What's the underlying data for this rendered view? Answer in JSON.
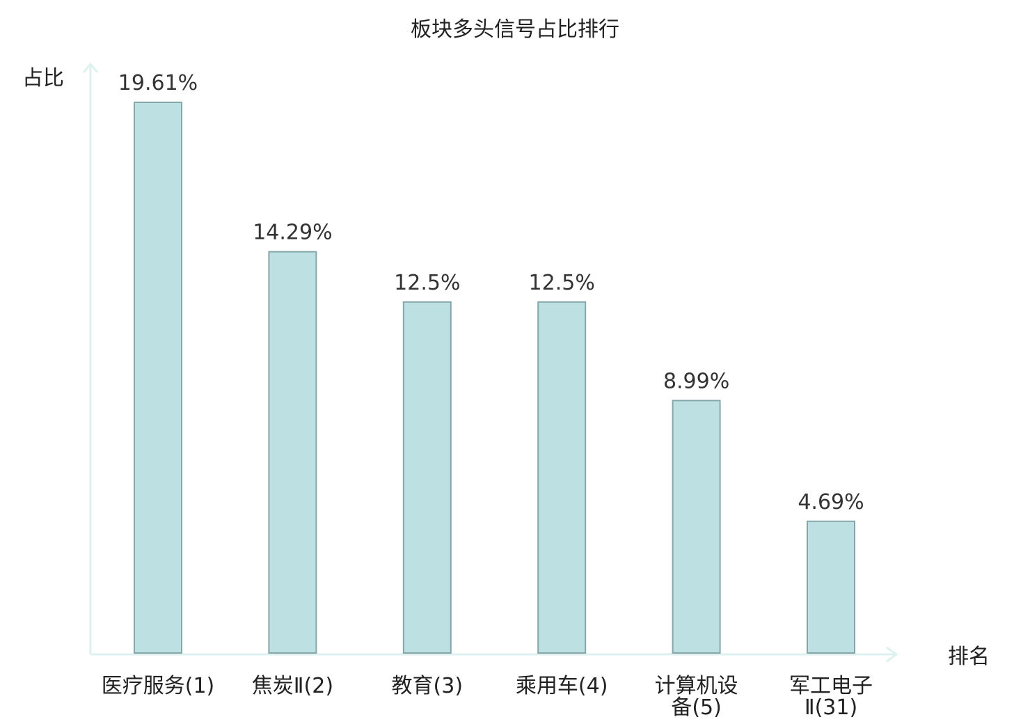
{
  "chart_data": {
    "type": "bar",
    "title": "板块多头信号占比排行",
    "xlabel": "排名",
    "ylabel": "占比",
    "categories": [
      "医疗服务(1)",
      "焦炭Ⅱ(2)",
      "教育(3)",
      "乘用车(4)",
      "计算机设备(5)",
      "军工电子Ⅱ(31)"
    ],
    "category_lines": [
      [
        "医疗服务(1)"
      ],
      [
        "焦炭Ⅱ(2)"
      ],
      [
        "教育(3)"
      ],
      [
        "乘用车(4)"
      ],
      [
        "计算机设",
        "备(5)"
      ],
      [
        "军工电子",
        "Ⅱ(31)"
      ]
    ],
    "values": [
      19.61,
      14.29,
      12.5,
      12.5,
      8.99,
      4.69
    ],
    "value_labels": [
      "19.61%",
      "14.29%",
      "12.5%",
      "12.5%",
      "8.99%",
      "4.69%"
    ],
    "highlight_index": 5,
    "ylim": [
      0,
      19.61
    ],
    "grid": false,
    "legend": "none",
    "colors": {
      "bar_fill": "#bde0e3",
      "bar_stroke": "#86a6a9",
      "axis": "#dff1ef",
      "text": "#222222",
      "value_text": "#333333",
      "highlight_text": "#e31b1b"
    }
  }
}
